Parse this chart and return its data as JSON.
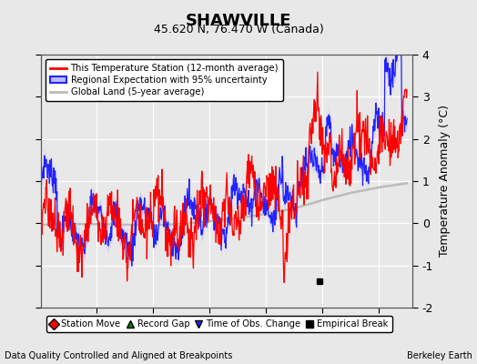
{
  "title": "SHAWVILLE",
  "subtitle": "45.620 N, 76.470 W (Canada)",
  "ylabel": "Temperature Anomaly (°C)",
  "xlabel_left": "Data Quality Controlled and Aligned at Breakpoints",
  "xlabel_right": "Berkeley Earth",
  "ylim": [
    -2,
    4
  ],
  "xlim": [
    1950,
    2016
  ],
  "xticks": [
    1960,
    1970,
    1980,
    1990,
    2000,
    2010
  ],
  "yticks": [
    -2,
    -1,
    0,
    1,
    2,
    3,
    4
  ],
  "background_color": "#e8e8e8",
  "plot_bg_color": "#e8e8e8",
  "grid_color": "#ffffff",
  "red_line_color": "#ff0000",
  "blue_line_color": "#2222ff",
  "blue_fill_color": "#bbbbff",
  "gray_line_color": "#bbbbbb",
  "marker_empirical_x": 1999.5,
  "marker_empirical_y": -1.38,
  "legend_items": [
    {
      "label": "This Temperature Station (12-month average)",
      "color": "#ff0000"
    },
    {
      "label": "Regional Expectation with 95% uncertainty",
      "color": "#2222ff"
    },
    {
      "label": "Global Land (5-year average)",
      "color": "#bbbbbb"
    }
  ],
  "bottom_legend_items": [
    {
      "label": "Station Move",
      "marker": "D",
      "color": "#ff0000"
    },
    {
      "label": "Record Gap",
      "marker": "^",
      "color": "#008000"
    },
    {
      "label": "Time of Obs. Change",
      "marker": "v",
      "color": "#2222ff"
    },
    {
      "label": "Empirical Break",
      "marker": "s",
      "color": "#000000"
    }
  ]
}
